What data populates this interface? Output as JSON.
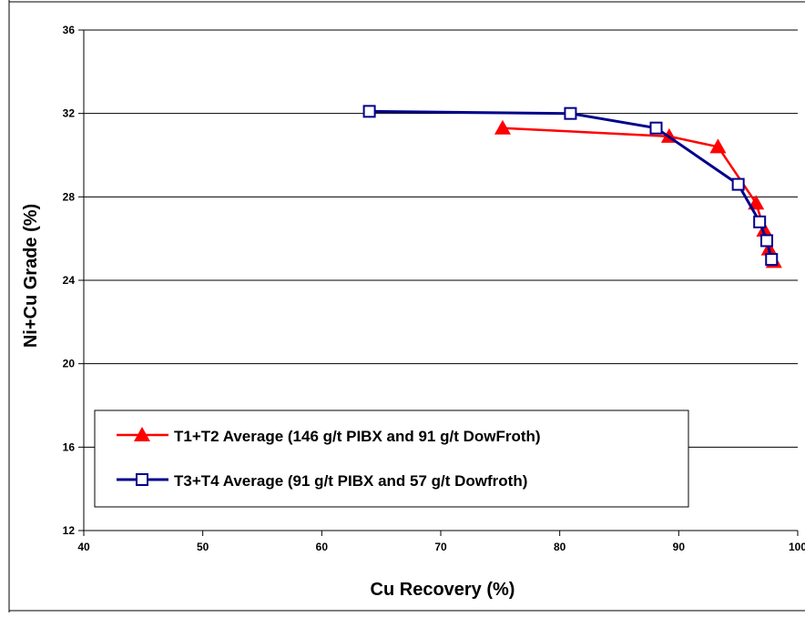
{
  "chart_data": {
    "type": "line",
    "title": "",
    "xlabel": "Cu Recovery (%)",
    "ylabel": "Ni+Cu Grade (%)",
    "xlim": [
      40,
      100
    ],
    "ylim": [
      12,
      36
    ],
    "xticks": [
      40,
      50,
      60,
      70,
      80,
      90,
      100
    ],
    "yticks": [
      12,
      16,
      20,
      24,
      28,
      32,
      36
    ],
    "grid": "horizontal",
    "legend_position": "bottom-left",
    "series": [
      {
        "name": "T1+T2 Average (146 g/t PIBX and 91 g/t DowFroth)",
        "color": "#ff0000",
        "marker": "filled-triangle",
        "x": [
          75.2,
          89.2,
          93.3,
          96.5,
          97.2,
          97.6,
          98.0
        ],
        "y": [
          31.3,
          30.9,
          30.4,
          27.7,
          26.4,
          25.5,
          24.9
        ]
      },
      {
        "name": "T3+T4 Average (91 g/t PIBX and 57 g/t Dowfroth)",
        "color": "#00008b",
        "marker": "open-square",
        "x": [
          64.0,
          80.9,
          88.1,
          95.0,
          96.8,
          97.4,
          97.8
        ],
        "y": [
          32.1,
          32.0,
          31.3,
          28.6,
          26.8,
          25.9,
          25.0
        ]
      }
    ]
  }
}
